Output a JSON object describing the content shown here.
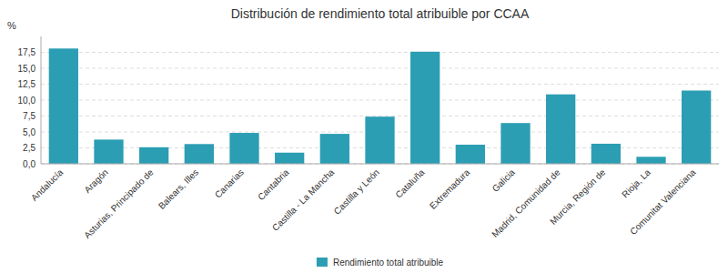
{
  "chart_data": {
    "type": "bar",
    "title": "Distribución de rendimiento total atribuible por CCAA",
    "ylabel": "%",
    "categories": [
      "Andalucía",
      "Aragón",
      "Asturias, Principado de",
      "Balears, Illes",
      "Canarias",
      "Cantabria",
      "Castilla - La Mancha",
      "Castilla y León",
      "Cataluña",
      "Extremadura",
      "Galicia",
      "Madrid, Comunidad de",
      "Murcia, Región de",
      "Rioja, La",
      "Comunitat Valenciana"
    ],
    "series": [
      {
        "name": "Rendimiento total atribuible",
        "color": "#2b9eb3",
        "values": [
          18.1,
          3.8,
          2.6,
          3.1,
          4.85,
          1.75,
          4.7,
          7.4,
          17.6,
          3.0,
          6.4,
          10.9,
          3.15,
          1.1,
          11.5
        ]
      }
    ],
    "ylim": [
      0,
      20
    ],
    "yticks": [
      {
        "value": 0.0,
        "label": "0,0"
      },
      {
        "value": 2.5,
        "label": "2,5"
      },
      {
        "value": 5.0,
        "label": "5,0"
      },
      {
        "value": 7.5,
        "label": "7,5"
      },
      {
        "value": 10.0,
        "label": "10,0"
      },
      {
        "value": 12.5,
        "label": "12,5"
      },
      {
        "value": 15.0,
        "label": "15,0"
      },
      {
        "value": 17.5,
        "label": "17,5"
      }
    ],
    "grid": true,
    "legend": "bottom"
  }
}
